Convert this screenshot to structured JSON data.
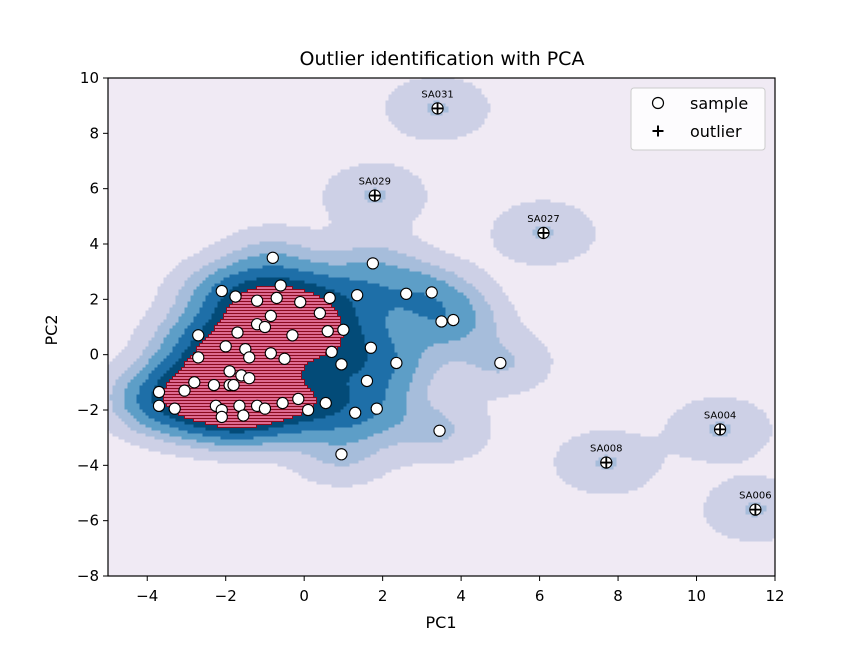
{
  "chart_data": {
    "type": "scatter",
    "title": "Outlier identification with PCA",
    "xlabel": "PC1",
    "ylabel": "PC2",
    "xlim": [
      -5,
      12
    ],
    "ylim": [
      -8,
      10
    ],
    "xticks": [
      -4,
      -2,
      0,
      2,
      4,
      6,
      8,
      10,
      12
    ],
    "yticks": [
      -8,
      -6,
      -4,
      -2,
      0,
      2,
      4,
      6,
      8,
      10
    ],
    "legend": {
      "position": "top-right",
      "entries": [
        "sample",
        "outlier"
      ]
    },
    "background_color": "#f0eaf4",
    "density_colors": [
      "#cdd0e6",
      "#a6bddb",
      "#5d9ec7",
      "#1e6fa8",
      "#034b78"
    ],
    "density_top_color": "#dd6a90",
    "density_top_edge": "#8b0a1e",
    "samples": [
      [
        -0.8,
        3.5
      ],
      [
        1.75,
        3.3
      ],
      [
        -0.6,
        2.5
      ],
      [
        -2.1,
        2.3
      ],
      [
        -1.75,
        2.1
      ],
      [
        -0.7,
        2.05
      ],
      [
        0.65,
        2.05
      ],
      [
        1.35,
        2.15
      ],
      [
        2.6,
        2.2
      ],
      [
        3.25,
        2.25
      ],
      [
        -1.2,
        1.95
      ],
      [
        -0.1,
        1.9
      ],
      [
        0.4,
        1.5
      ],
      [
        -0.85,
        1.4
      ],
      [
        -1.2,
        1.1
      ],
      [
        -1.0,
        1.0
      ],
      [
        -0.3,
        0.7
      ],
      [
        -2.7,
        0.7
      ],
      [
        -1.7,
        0.8
      ],
      [
        0.6,
        0.85
      ],
      [
        1.0,
        0.9
      ],
      [
        3.5,
        1.2
      ],
      [
        3.8,
        1.25
      ],
      [
        -2.0,
        0.3
      ],
      [
        -1.5,
        0.2
      ],
      [
        1.7,
        0.25
      ],
      [
        -0.85,
        0.05
      ],
      [
        -2.7,
        -0.1
      ],
      [
        -1.4,
        -0.1
      ],
      [
        -0.5,
        -0.15
      ],
      [
        0.7,
        0.1
      ],
      [
        2.35,
        -0.3
      ],
      [
        5.0,
        -0.3
      ],
      [
        0.95,
        -0.35
      ],
      [
        -1.9,
        -0.6
      ],
      [
        -1.6,
        -0.75
      ],
      [
        -1.4,
        -0.85
      ],
      [
        -2.3,
        -1.1
      ],
      [
        -1.9,
        -1.1
      ],
      [
        -1.8,
        -1.1
      ],
      [
        -2.8,
        -1.0
      ],
      [
        -3.05,
        -1.3
      ],
      [
        1.6,
        -0.95
      ],
      [
        -3.7,
        -1.35
      ],
      [
        -3.7,
        -1.85
      ],
      [
        -3.3,
        -1.95
      ],
      [
        -2.25,
        -1.85
      ],
      [
        -1.65,
        -1.85
      ],
      [
        -1.2,
        -1.85
      ],
      [
        -1.0,
        -1.95
      ],
      [
        -0.55,
        -1.75
      ],
      [
        -0.15,
        -1.6
      ],
      [
        0.55,
        -1.75
      ],
      [
        0.1,
        -2.0
      ],
      [
        -2.1,
        -2.0
      ],
      [
        -1.55,
        -2.2
      ],
      [
        -2.1,
        -2.25
      ],
      [
        1.3,
        -2.1
      ],
      [
        1.85,
        -1.95
      ],
      [
        3.45,
        -2.75
      ],
      [
        0.95,
        -3.6
      ]
    ],
    "outliers": [
      {
        "label": "SA031",
        "x": 3.4,
        "y": 8.9
      },
      {
        "label": "SA029",
        "x": 1.8,
        "y": 5.75
      },
      {
        "label": "SA027",
        "x": 6.1,
        "y": 4.4
      },
      {
        "label": "SA004",
        "x": 10.6,
        "y": -2.7
      },
      {
        "label": "SA008",
        "x": 7.7,
        "y": -3.9
      },
      {
        "label": "SA006",
        "x": 11.5,
        "y": -5.6
      }
    ]
  }
}
